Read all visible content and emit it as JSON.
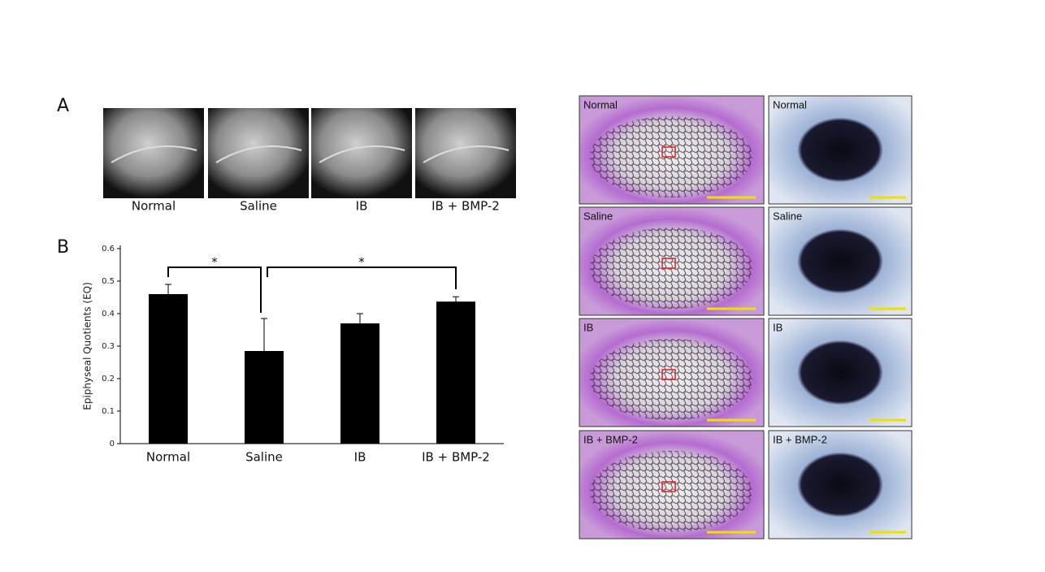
{
  "panels": {
    "a": "A",
    "b": "B"
  },
  "xray_captions": [
    "Normal",
    "Saline",
    "IB",
    "IB + BMP-2"
  ],
  "chart_data": {
    "type": "bar",
    "y_label": "Epiphyseal Quotients (EQ)",
    "categories": [
      "Normal",
      "Saline",
      "IB",
      "IB + BMP-2"
    ],
    "values": [
      0.46,
      0.285,
      0.37,
      0.437
    ],
    "errors": [
      0.03,
      0.1,
      0.03,
      0.015
    ],
    "color": "#000000",
    "ylim": [
      0,
      0.6
    ],
    "yticks": [
      0,
      0.1,
      0.2,
      0.3,
      0.4,
      0.5,
      0.6
    ],
    "annotations": [
      "*",
      "*"
    ]
  },
  "histology": {
    "rows": [
      {
        "left": "Normal",
        "right": "Normal"
      },
      {
        "left": "Saline",
        "right": "Saline"
      },
      {
        "left": "IB",
        "right": "IB"
      },
      {
        "left": "IB + BMP-2",
        "right": "IB + BMP-2"
      }
    ]
  }
}
